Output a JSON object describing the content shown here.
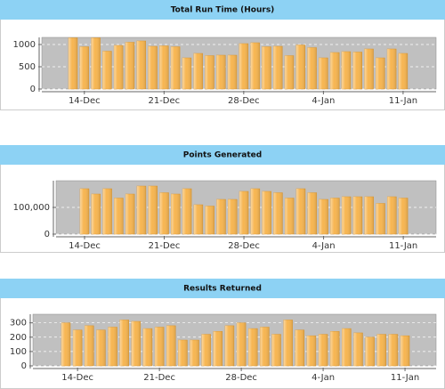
{
  "chart_data": [
    {
      "type": "bar",
      "title": "Total Run Time (Hours)",
      "color": "#f7b652",
      "grid": true,
      "categories": [
        null,
        "14-Dec",
        null,
        null,
        null,
        null,
        null,
        null,
        "21-Dec",
        null,
        null,
        null,
        null,
        null,
        null,
        "28-Dec",
        null,
        null,
        null,
        null,
        null,
        null,
        "4-Jan",
        null,
        null,
        null,
        null,
        null,
        null,
        "11-Jan"
      ],
      "values": [
        1150,
        950,
        1150,
        850,
        980,
        1050,
        1080,
        960,
        970,
        950,
        700,
        800,
        750,
        760,
        760,
        1020,
        1040,
        950,
        960,
        750,
        990,
        930,
        700,
        820,
        840,
        830,
        900,
        700,
        900,
        800
      ],
      "ylim": [
        0,
        1160
      ],
      "yticks": [
        0,
        500,
        1000
      ]
    },
    {
      "type": "bar",
      "title": "Points Generated",
      "color": "#f7b652",
      "grid": true,
      "categories": [
        "14-Dec",
        null,
        null,
        null,
        null,
        null,
        null,
        "21-Dec",
        null,
        null,
        null,
        null,
        null,
        null,
        "28-Dec",
        null,
        null,
        null,
        null,
        null,
        null,
        "4-Jan",
        null,
        null,
        null,
        null,
        null,
        null,
        "11-Jan"
      ],
      "values": [
        170000,
        150000,
        170000,
        135000,
        150000,
        180000,
        180000,
        155000,
        150000,
        170000,
        110000,
        105000,
        130000,
        130000,
        160000,
        170000,
        160000,
        155000,
        135000,
        170000,
        155000,
        130000,
        135000,
        140000,
        140000,
        140000,
        115000,
        140000,
        135000
      ],
      "ylim": [
        0,
        200000
      ],
      "yticks": [
        0,
        {
          "value": 100000,
          "label": "100,000"
        }
      ]
    },
    {
      "type": "bar",
      "title": "Results Returned",
      "color": "#f7b652",
      "grid": true,
      "categories": [
        null,
        "14-Dec",
        null,
        null,
        null,
        null,
        null,
        null,
        "21-Dec",
        null,
        null,
        null,
        null,
        null,
        null,
        "28-Dec",
        null,
        null,
        null,
        null,
        null,
        null,
        "4-Jan",
        null,
        null,
        null,
        null,
        null,
        null,
        "11-Jan"
      ],
      "values": [
        300,
        250,
        280,
        250,
        270,
        320,
        310,
        260,
        270,
        280,
        180,
        180,
        220,
        240,
        280,
        300,
        260,
        270,
        220,
        320,
        250,
        210,
        220,
        240,
        260,
        230,
        200,
        220,
        220,
        210
      ],
      "ylim": [
        0,
        360
      ],
      "yticks": [
        0,
        100,
        200,
        300
      ]
    }
  ]
}
